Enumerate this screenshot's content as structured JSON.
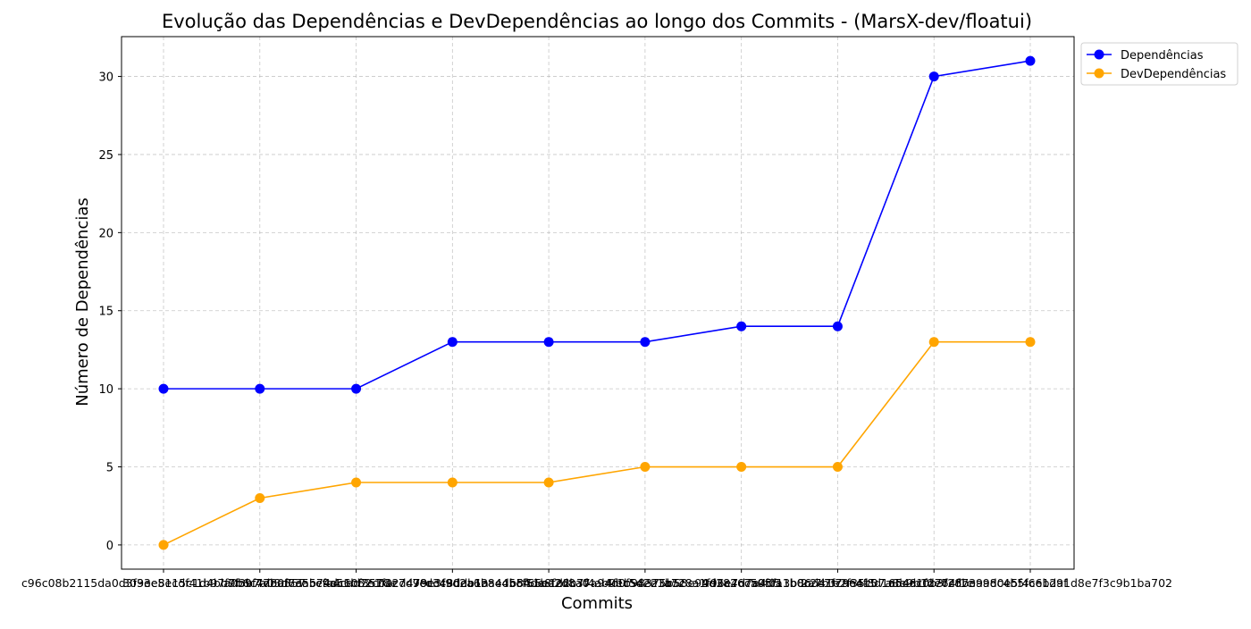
{
  "chart_data": {
    "type": "line",
    "title": "Evolução das Dependências e DevDependências ao longo dos Commits - (MarsX-dev/floatui)",
    "xlabel": "Commits",
    "ylabel": "Número de Dependências",
    "categories": [
      "c96c08b2115da0d3f9ee51cdf41b97f9b6c7d80357",
      "3033e8e15c1d4bb7f3b7a03d7e5b74dc60f3578e",
      "a0b9f47baf63a5cfa4cad7e1f2c7d98cc48ddb1a",
      "e9a51b82c0a2d479e3f9d2a6b8e45cf51be2d8a0",
      "7cd3c90ea13a4db54de8f26b7f4ab9ec5d2e1a72",
      "b8f65e1d2c37a94d0f54e23b5c8a1f96e7d7a4d5",
      "4f1b98375b58e94d3826c59f0a1b0c2e7f7a6e15",
      "9d2e4c7a05f13b86d41e2f35c07a8e9b1d764f1c",
      "2a7b3c9e4f8d1a5e6c0b3f2d7e9a8c4b5f6e1d9f",
      "6d4a1f2e7c8b3a9d0e5f4c6b2a1d8e7f3c9b1ba702"
    ],
    "series": [
      {
        "name": "Dependências",
        "color": "#0000ff",
        "values": [
          10,
          10,
          10,
          13,
          13,
          13,
          14,
          14,
          30,
          31
        ]
      },
      {
        "name": "DevDependências",
        "color": "#ffa500",
        "values": [
          0,
          3,
          4,
          4,
          4,
          5,
          5,
          5,
          13,
          13
        ]
      }
    ],
    "ylim": [
      -1.55,
      32.55
    ],
    "yticks": [
      0,
      5,
      10,
      15,
      20,
      25,
      30
    ],
    "grid": true,
    "legend_position": "outside top-right"
  }
}
